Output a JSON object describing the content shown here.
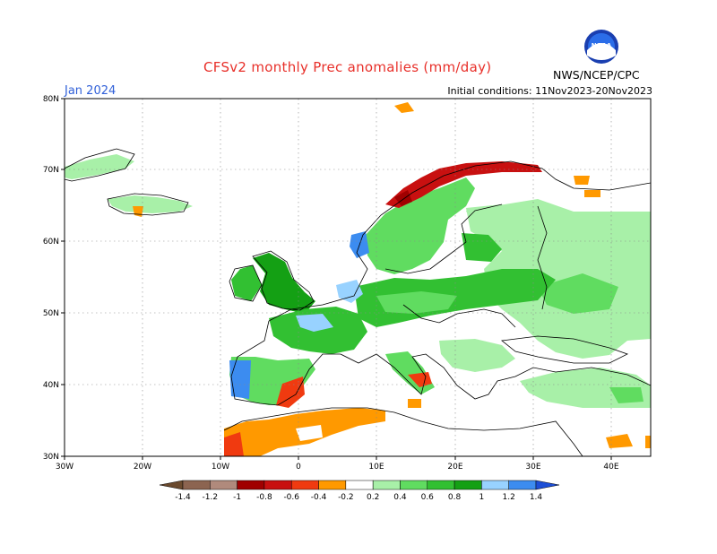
{
  "title": "CFSv2 monthly Prec anomalies (mm/day)",
  "period": "Jan 2024",
  "initial_conditions": "Initial conditions: 11Nov2023-20Nov2023",
  "agency": "NWS/NCEP/CPC",
  "logo": {
    "text": "NOAA",
    "icon": "noaa-logo-icon"
  },
  "map": {
    "lat_labels": [
      "80N",
      "70N",
      "60N",
      "50N",
      "40N",
      "30N"
    ],
    "lon_labels": [
      "30W",
      "20W",
      "10W",
      "0",
      "10E",
      "20E",
      "30E",
      "40E"
    ],
    "lat_range": [
      30,
      80
    ],
    "lon_range": [
      -30,
      45
    ]
  },
  "colorbar": {
    "labels": [
      "-1.4",
      "-1.2",
      "-1",
      "-0.8",
      "-0.6",
      "-0.4",
      "-0.2",
      "0.2",
      "0.4",
      "0.6",
      "0.8",
      "1",
      "1.2",
      "1.4"
    ],
    "colors": [
      "#6b4a2e",
      "#8c6450",
      "#b08a7c",
      "#a00000",
      "#c81010",
      "#f03a10",
      "#ff9900",
      "#ffffff",
      "#a8f0a8",
      "#60dc60",
      "#32c032",
      "#14a014",
      "#98d2ff",
      "#3c8cf0",
      "#1c4ed6"
    ]
  },
  "colors": {
    "wet_light": "#a8f0a8",
    "wet_medium": "#60dc60",
    "wet_strong": "#32c032",
    "wet_very": "#14a014",
    "very_wet_blue": "#98d2ff",
    "extreme_wet_blue": "#3c8cf0",
    "dry_orange": "#ff9900",
    "dry_red": "#f03a10",
    "dry_darkred": "#a00000"
  }
}
